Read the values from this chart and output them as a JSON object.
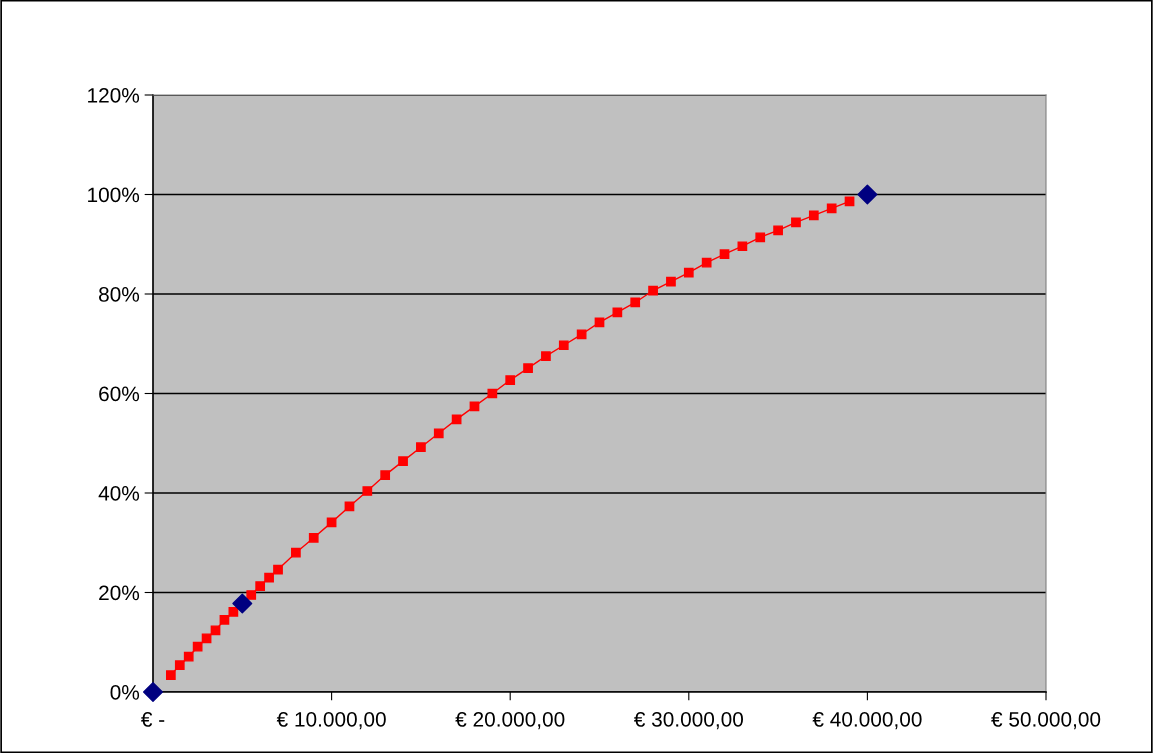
{
  "chart_data": {
    "type": "line",
    "series": [
      {
        "color": "#ff0000",
        "marker": "square",
        "x": [
          1000,
          1500,
          2000,
          2500,
          3000,
          3500,
          4000,
          4500,
          5500,
          6000,
          6500,
          7000,
          8000,
          9000,
          10000,
          11000,
          12000,
          13000,
          14000,
          15000,
          16000,
          17000,
          18000,
          19000,
          20000,
          21000,
          22000,
          23000,
          24000,
          25000,
          26000,
          27000,
          28000,
          29000,
          30000,
          31000,
          32000,
          33000,
          34000,
          35000,
          36000,
          37000,
          38000,
          39000
        ],
        "values": [
          3.4,
          5.4,
          7.1,
          9.1,
          10.8,
          12.4,
          14.5,
          16.1,
          19.5,
          21.3,
          23.0,
          24.6,
          28.0,
          31.0,
          34.1,
          37.3,
          40.4,
          43.6,
          46.4,
          49.2,
          52.0,
          54.8,
          57.4,
          60.0,
          62.7,
          65.1,
          67.5,
          69.7,
          71.9,
          74.3,
          76.3,
          78.3,
          80.7,
          82.5,
          84.3,
          86.3,
          88.0,
          89.6,
          91.4,
          92.8,
          94.4,
          95.8,
          97.2,
          98.6
        ]
      },
      {
        "type": "scatter",
        "color": "#000080",
        "marker": "diamond",
        "x": [
          0,
          5000,
          40000
        ],
        "values": [
          0,
          17.8,
          100
        ]
      }
    ],
    "xlim": [
      0,
      50000
    ],
    "xticks": [
      {
        "value": 0,
        "label": "€ -"
      },
      {
        "value": 10000,
        "label": "€ 10.000,00"
      },
      {
        "value": 20000,
        "label": "€ 20.000,00"
      },
      {
        "value": 30000,
        "label": "€ 30.000,00"
      },
      {
        "value": 40000,
        "label": "€ 40.000,00"
      },
      {
        "value": 50000,
        "label": "€ 50.000,00"
      }
    ],
    "ylim": [
      0,
      120
    ],
    "yticks": [
      {
        "value": 0,
        "label": "0%"
      },
      {
        "value": 20,
        "label": "20%"
      },
      {
        "value": 40,
        "label": "40%"
      },
      {
        "value": 60,
        "label": "60%"
      },
      {
        "value": 80,
        "label": "80%"
      },
      {
        "value": 100,
        "label": "100%"
      },
      {
        "value": 120,
        "label": "120%"
      }
    ],
    "grid": "y"
  }
}
